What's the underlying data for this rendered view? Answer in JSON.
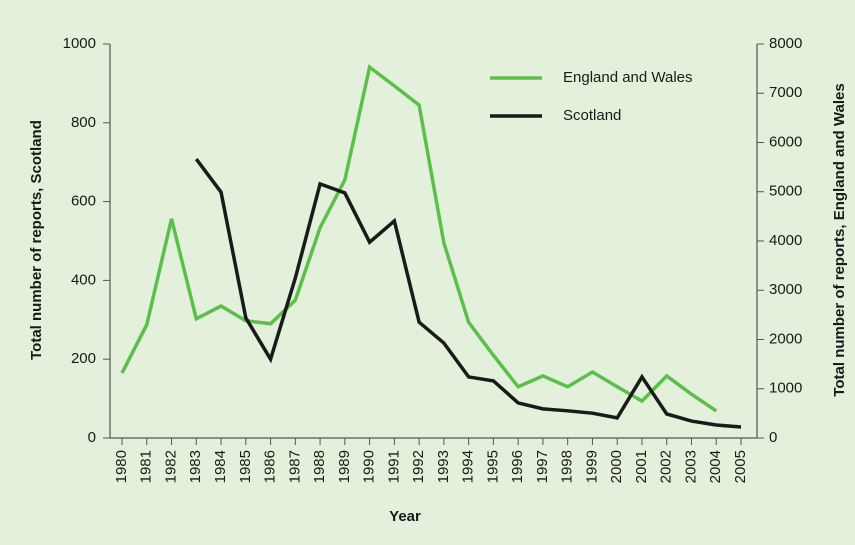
{
  "chart_data": {
    "type": "line",
    "x_label": "Year",
    "y_label": "Total number of reports, Scotland",
    "y2_label": "Total number of reports, England and Wales",
    "categories": [
      "1980",
      "1981",
      "1982",
      "1983",
      "1984",
      "1985",
      "1986",
      "1987",
      "1988",
      "1989",
      "1990",
      "1991",
      "1992",
      "1993",
      "1994",
      "1995",
      "1996",
      "1997",
      "1998",
      "1999",
      "2000",
      "2001",
      "2002",
      "2003",
      "2004",
      "2005"
    ],
    "ylim": [
      0,
      1000
    ],
    "yticks": [
      0,
      200,
      400,
      600,
      800,
      1000
    ],
    "y2lim": [
      0,
      8000
    ],
    "y2ticks": [
      0,
      1000,
      2000,
      3000,
      4000,
      5000,
      6000,
      7000,
      8000
    ],
    "series": [
      {
        "name": "England and Wales",
        "color": "#5cbf4a",
        "axis": "y2",
        "values": [
          1320,
          2300,
          4450,
          2420,
          2680,
          2380,
          2320,
          2800,
          4270,
          5240,
          7530,
          7150,
          6760,
          3960,
          2350,
          1680,
          1040,
          1260,
          1040,
          1340,
          1040,
          750,
          1260,
          890,
          550,
          null
        ]
      },
      {
        "name": "Scotland",
        "color": "#1a1a1a",
        "values": [
          null,
          null,
          null,
          708,
          624,
          305,
          200,
          406,
          645,
          622,
          497,
          551,
          294,
          241,
          155,
          145,
          89,
          74,
          69,
          63,
          51,
          155,
          61,
          43,
          33,
          28
        ]
      }
    ]
  }
}
